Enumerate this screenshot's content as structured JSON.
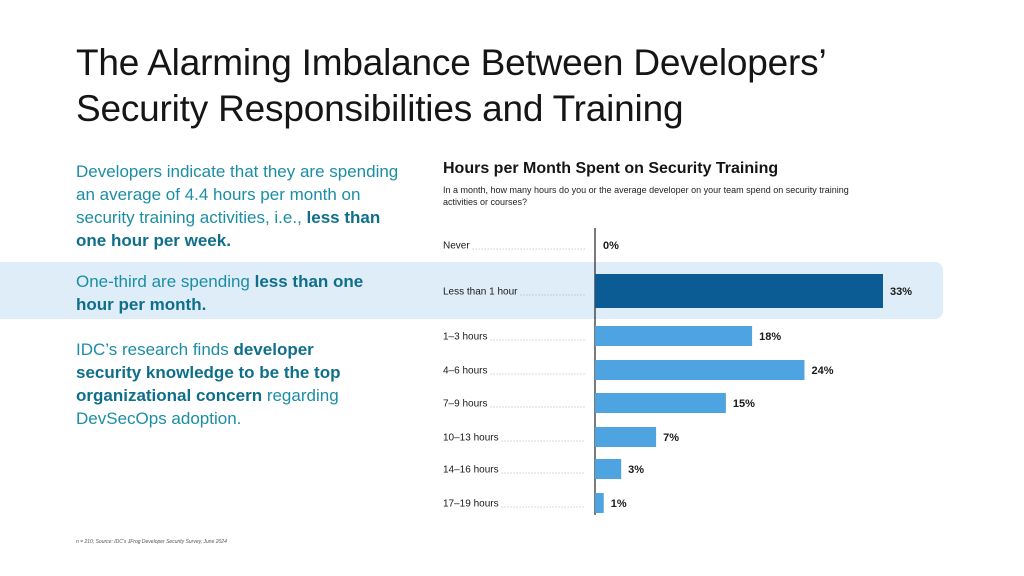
{
  "title": {
    "line1": "The Alarming Imbalance Between Developers’",
    "line2": "Security Responsibilities and Training"
  },
  "left": {
    "p1_a": "Developers indicate that they are spending an average of 4.4 hours per month on security training activities, i.e., ",
    "p1_b": "less than one hour per week.",
    "p2_a": "One-third are spending ",
    "p2_b": "less than one hour per month.",
    "p3_a": "IDC’s research finds ",
    "p3_b": "developer security knowledge to be the top organizational concern",
    "p3_c": " regarding DevSecOps adoption."
  },
  "footnote": "n = 210; Source: IDC’s JFrog Developer Security Survey, June 2024",
  "colors": {
    "highlight_bar": "#0b5c94",
    "bar": "#4ea4e0",
    "band": "#deedf8",
    "accent_text": "#1b8ea6"
  },
  "chart_data": {
    "type": "bar",
    "orientation": "horizontal",
    "title": "Hours per Month Spent on Security Training",
    "subtitle": "In a month, how many hours do you or the average developer on your team spend on security training activities or courses?",
    "categories": [
      "Never",
      "Less than 1 hour",
      "1–3 hours",
      "4–6 hours",
      "7–9 hours",
      "10–13 hours",
      "14–16 hours",
      "17–19 hours"
    ],
    "values": [
      0,
      33,
      18,
      24,
      15,
      7,
      3,
      1
    ],
    "value_labels": [
      "0%",
      "33%",
      "18%",
      "24%",
      "15%",
      "7%",
      "3%",
      "1%"
    ],
    "highlighted_category": "Less than 1 hour",
    "xlim": [
      0,
      33
    ],
    "grid": false,
    "legend": "none"
  }
}
